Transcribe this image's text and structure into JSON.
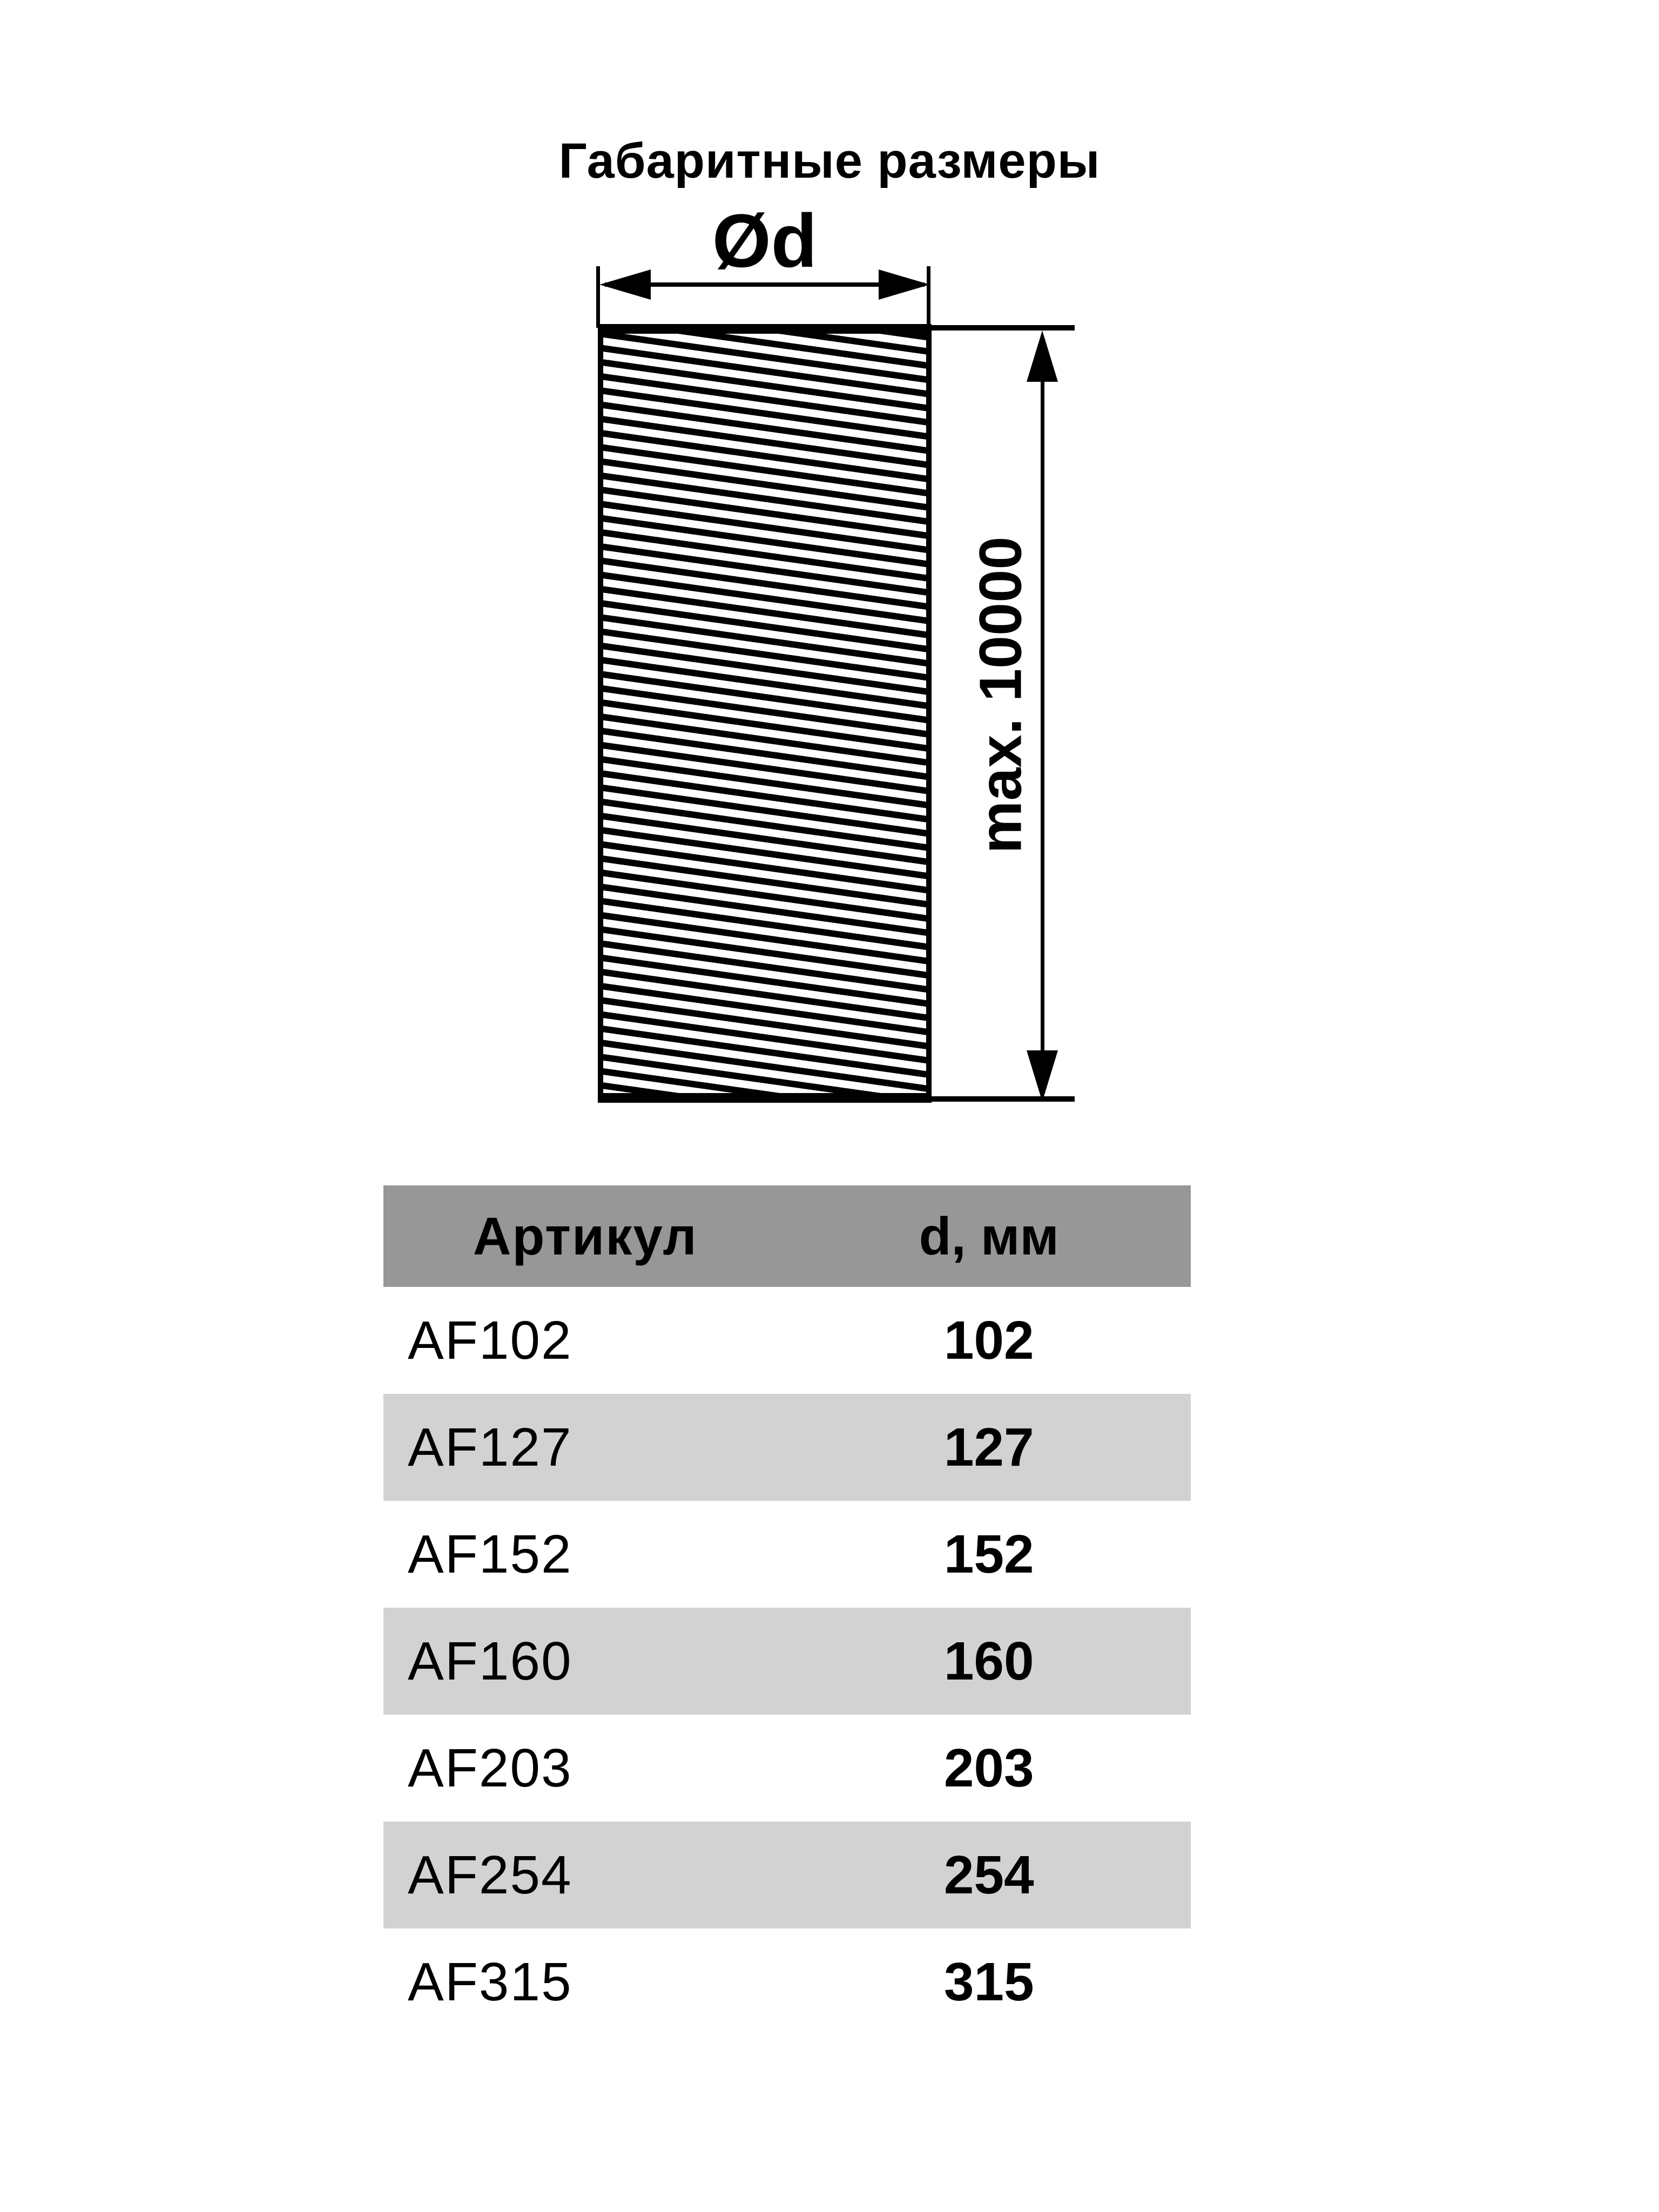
{
  "title": "Габаритные размеры",
  "diagram": {
    "diameter_label": "Ød",
    "length_label": "max. 10000"
  },
  "table": {
    "columns": [
      "Артикул",
      "d, мм"
    ],
    "rows": [
      {
        "article": "AF102",
        "d": "102"
      },
      {
        "article": "AF127",
        "d": "127"
      },
      {
        "article": "AF152",
        "d": "152"
      },
      {
        "article": "AF160",
        "d": "160"
      },
      {
        "article": "AF203",
        "d": "203"
      },
      {
        "article": "AF254",
        "d": "254"
      },
      {
        "article": "AF315",
        "d": "315"
      }
    ]
  },
  "colors": {
    "background": "#FFFFFF",
    "line": "#000000",
    "header_bg": "#979797",
    "row_alt_bg": "#D2D2D2"
  }
}
